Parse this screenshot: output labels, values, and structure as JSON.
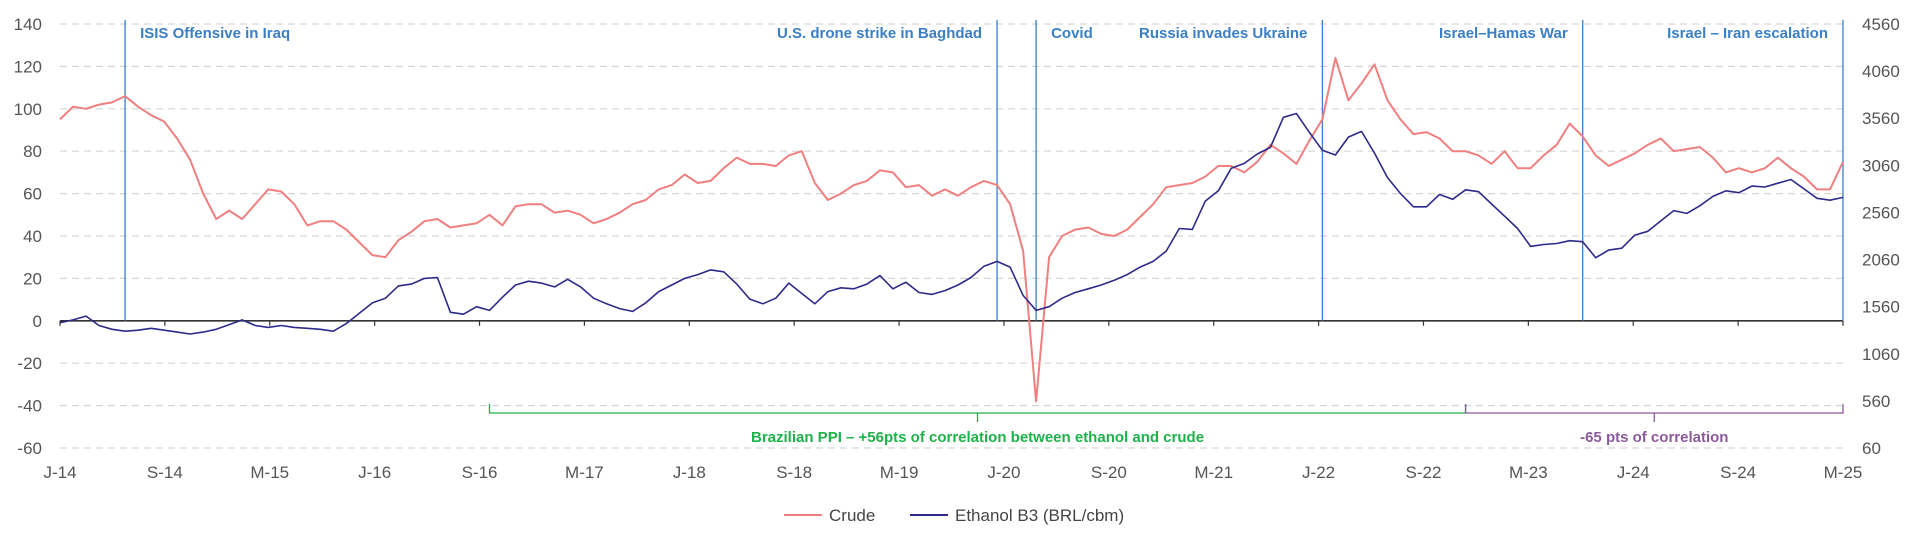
{
  "colors": {
    "crude": "#f07f7f",
    "ethanol": "#2d2a8a",
    "event": "#3b7fc4",
    "green": "#1db34a",
    "purple": "#8b5a9c",
    "grid": "#d6d6d6",
    "axis": "#333333"
  },
  "chart_data": {
    "type": "line",
    "x_ticks": [
      "J-14",
      "S-14",
      "M-15",
      "J-16",
      "S-16",
      "M-17",
      "J-18",
      "S-18",
      "M-19",
      "J-20",
      "S-20",
      "M-21",
      "J-22",
      "S-22",
      "M-23",
      "J-24",
      "S-24",
      "M-25"
    ],
    "left_axis": {
      "ylim": [
        -60,
        140
      ],
      "ticks": [
        140,
        120,
        100,
        80,
        60,
        40,
        20,
        0,
        -20,
        -40,
        -60
      ]
    },
    "right_axis": {
      "ylim": [
        60,
        4560
      ],
      "ticks": [
        "4560",
        "4060",
        "3560",
        "3060",
        "2560",
        "2060",
        "1560",
        "1060",
        "560",
        "60"
      ]
    },
    "grid": true,
    "legend_position": "bottom-center",
    "events": [
      {
        "label": "ISIS Offensive in Iraq",
        "date": "2014-06",
        "side": "right"
      },
      {
        "label": "U.S. drone strike in Baghdad",
        "date": "2020-01",
        "side": "left"
      },
      {
        "label": "Covid",
        "date": "2020-04",
        "side": "right"
      },
      {
        "label": "Russia invades Ukraine",
        "date": "2022-02",
        "side": "left"
      },
      {
        "label": "Israel–Hamas War",
        "date": "2023-10",
        "side": "left"
      },
      {
        "label": "Israel – Iran escalation",
        "date": "2025-06",
        "side": "left"
      }
    ],
    "brackets": [
      {
        "label": "Brazilian PPI – +56pts of correlation between ethanol and crude",
        "start": "2016-10",
        "end": "2023-01",
        "color": "green"
      },
      {
        "label": "-65 pts of correlation",
        "start": "2023-01",
        "end": "2025-06",
        "color": "purple"
      }
    ],
    "series": [
      {
        "name": "Crude",
        "axis": "left",
        "points": [
          [
            "2014-01",
            95
          ],
          [
            "2014-02",
            101
          ],
          [
            "2014-03",
            100
          ],
          [
            "2014-04",
            102
          ],
          [
            "2014-05",
            103
          ],
          [
            "2014-06",
            106
          ],
          [
            "2014-07",
            101
          ],
          [
            "2014-08",
            97
          ],
          [
            "2014-09",
            94
          ],
          [
            "2014-10",
            86
          ],
          [
            "2014-11",
            76
          ],
          [
            "2014-12",
            60
          ],
          [
            "2015-01",
            48
          ],
          [
            "2015-02",
            52
          ],
          [
            "2015-03",
            48
          ],
          [
            "2015-04",
            55
          ],
          [
            "2015-05",
            62
          ],
          [
            "2015-06",
            61
          ],
          [
            "2015-07",
            55
          ],
          [
            "2015-08",
            45
          ],
          [
            "2015-09",
            47
          ],
          [
            "2015-10",
            47
          ],
          [
            "2015-11",
            43
          ],
          [
            "2015-12",
            37
          ],
          [
            "2016-01",
            31
          ],
          [
            "2016-02",
            30
          ],
          [
            "2016-03",
            38
          ],
          [
            "2016-04",
            42
          ],
          [
            "2016-05",
            47
          ],
          [
            "2016-06",
            48
          ],
          [
            "2016-07",
            44
          ],
          [
            "2016-08",
            45
          ],
          [
            "2016-09",
            46
          ],
          [
            "2016-10",
            50
          ],
          [
            "2016-11",
            45
          ],
          [
            "2016-12",
            54
          ],
          [
            "2017-01",
            55
          ],
          [
            "2017-02",
            55
          ],
          [
            "2017-03",
            51
          ],
          [
            "2017-04",
            52
          ],
          [
            "2017-05",
            50
          ],
          [
            "2017-06",
            46
          ],
          [
            "2017-07",
            48
          ],
          [
            "2017-08",
            51
          ],
          [
            "2017-09",
            55
          ],
          [
            "2017-10",
            57
          ],
          [
            "2017-11",
            62
          ],
          [
            "2017-12",
            64
          ],
          [
            "2018-01",
            69
          ],
          [
            "2018-02",
            65
          ],
          [
            "2018-03",
            66
          ],
          [
            "2018-04",
            72
          ],
          [
            "2018-05",
            77
          ],
          [
            "2018-06",
            74
          ],
          [
            "2018-07",
            74
          ],
          [
            "2018-08",
            73
          ],
          [
            "2018-09",
            78
          ],
          [
            "2018-10",
            80
          ],
          [
            "2018-11",
            65
          ],
          [
            "2018-12",
            57
          ],
          [
            "2019-01",
            60
          ],
          [
            "2019-02",
            64
          ],
          [
            "2019-03",
            66
          ],
          [
            "2019-04",
            71
          ],
          [
            "2019-05",
            70
          ],
          [
            "2019-06",
            63
          ],
          [
            "2019-07",
            64
          ],
          [
            "2019-08",
            59
          ],
          [
            "2019-09",
            62
          ],
          [
            "2019-10",
            59
          ],
          [
            "2019-11",
            63
          ],
          [
            "2019-12",
            66
          ],
          [
            "2020-01",
            64
          ],
          [
            "2020-02",
            55
          ],
          [
            "2020-03",
            33
          ],
          [
            "2020-04",
            -38
          ],
          [
            "2020-05",
            30
          ],
          [
            "2020-06",
            40
          ],
          [
            "2020-07",
            43
          ],
          [
            "2020-08",
            44
          ],
          [
            "2020-09",
            41
          ],
          [
            "2020-10",
            40
          ],
          [
            "2020-11",
            43
          ],
          [
            "2020-12",
            49
          ],
          [
            "2021-01",
            55
          ],
          [
            "2021-02",
            63
          ],
          [
            "2021-03",
            64
          ],
          [
            "2021-04",
            65
          ],
          [
            "2021-05",
            68
          ],
          [
            "2021-06",
            73
          ],
          [
            "2021-07",
            73
          ],
          [
            "2021-08",
            70
          ],
          [
            "2021-09",
            75
          ],
          [
            "2021-10",
            83
          ],
          [
            "2021-11",
            79
          ],
          [
            "2021-12",
            74
          ],
          [
            "2022-01",
            85
          ],
          [
            "2022-02",
            95
          ],
          [
            "2022-03",
            124
          ],
          [
            "2022-04",
            104
          ],
          [
            "2022-05",
            112
          ],
          [
            "2022-06",
            121
          ],
          [
            "2022-07",
            104
          ],
          [
            "2022-08",
            95
          ],
          [
            "2022-09",
            88
          ],
          [
            "2022-10",
            89
          ],
          [
            "2022-11",
            86
          ],
          [
            "2022-12",
            80
          ],
          [
            "2023-01",
            80
          ],
          [
            "2023-02",
            78
          ],
          [
            "2023-03",
            74
          ],
          [
            "2023-04",
            80
          ],
          [
            "2023-05",
            72
          ],
          [
            "2023-06",
            72
          ],
          [
            "2023-07",
            78
          ],
          [
            "2023-08",
            83
          ],
          [
            "2023-09",
            93
          ],
          [
            "2023-10",
            87
          ],
          [
            "2023-11",
            78
          ],
          [
            "2023-12",
            73
          ],
          [
            "2024-01",
            76
          ],
          [
            "2024-02",
            79
          ],
          [
            "2024-03",
            83
          ],
          [
            "2024-04",
            86
          ],
          [
            "2024-05",
            80
          ],
          [
            "2024-06",
            81
          ],
          [
            "2024-07",
            82
          ],
          [
            "2024-08",
            77
          ],
          [
            "2024-09",
            70
          ],
          [
            "2024-10",
            72
          ],
          [
            "2024-11",
            70
          ],
          [
            "2024-12",
            72
          ],
          [
            "2025-01",
            77
          ],
          [
            "2025-02",
            72
          ],
          [
            "2025-03",
            68
          ],
          [
            "2025-04",
            62
          ],
          [
            "2025-05",
            62
          ],
          [
            "2025-06",
            75
          ]
        ]
      },
      {
        "name": "Ethanol B3 (BRL/cbm)",
        "axis": "right",
        "points": [
          [
            "2014-01",
            1390
          ],
          [
            "2014-02",
            1420
          ],
          [
            "2014-03",
            1460
          ],
          [
            "2014-04",
            1360
          ],
          [
            "2014-05",
            1320
          ],
          [
            "2014-06",
            1300
          ],
          [
            "2014-07",
            1310
          ],
          [
            "2014-08",
            1330
          ],
          [
            "2014-09",
            1310
          ],
          [
            "2014-10",
            1290
          ],
          [
            "2014-11",
            1270
          ],
          [
            "2014-12",
            1290
          ],
          [
            "2015-01",
            1320
          ],
          [
            "2015-02",
            1370
          ],
          [
            "2015-03",
            1420
          ],
          [
            "2015-04",
            1360
          ],
          [
            "2015-05",
            1340
          ],
          [
            "2015-06",
            1360
          ],
          [
            "2015-07",
            1340
          ],
          [
            "2015-08",
            1330
          ],
          [
            "2015-09",
            1320
          ],
          [
            "2015-10",
            1300
          ],
          [
            "2015-11",
            1380
          ],
          [
            "2015-12",
            1490
          ],
          [
            "2016-01",
            1600
          ],
          [
            "2016-02",
            1650
          ],
          [
            "2016-03",
            1780
          ],
          [
            "2016-04",
            1800
          ],
          [
            "2016-05",
            1860
          ],
          [
            "2016-06",
            1870
          ],
          [
            "2016-07",
            1500
          ],
          [
            "2016-08",
            1480
          ],
          [
            "2016-09",
            1560
          ],
          [
            "2016-10",
            1520
          ],
          [
            "2016-11",
            1660
          ],
          [
            "2016-12",
            1790
          ],
          [
            "2017-01",
            1830
          ],
          [
            "2017-02",
            1810
          ],
          [
            "2017-03",
            1770
          ],
          [
            "2017-04",
            1850
          ],
          [
            "2017-05",
            1770
          ],
          [
            "2017-06",
            1650
          ],
          [
            "2017-07",
            1590
          ],
          [
            "2017-08",
            1540
          ],
          [
            "2017-09",
            1510
          ],
          [
            "2017-10",
            1600
          ],
          [
            "2017-11",
            1720
          ],
          [
            "2017-12",
            1790
          ],
          [
            "2018-01",
            1860
          ],
          [
            "2018-02",
            1900
          ],
          [
            "2018-03",
            1950
          ],
          [
            "2018-04",
            1930
          ],
          [
            "2018-05",
            1800
          ],
          [
            "2018-06",
            1640
          ],
          [
            "2018-07",
            1590
          ],
          [
            "2018-08",
            1650
          ],
          [
            "2018-09",
            1810
          ],
          [
            "2018-10",
            1700
          ],
          [
            "2018-11",
            1590
          ],
          [
            "2018-12",
            1720
          ],
          [
            "2019-01",
            1760
          ],
          [
            "2019-02",
            1750
          ],
          [
            "2019-03",
            1800
          ],
          [
            "2019-04",
            1890
          ],
          [
            "2019-05",
            1750
          ],
          [
            "2019-06",
            1820
          ],
          [
            "2019-07",
            1710
          ],
          [
            "2019-08",
            1690
          ],
          [
            "2019-09",
            1730
          ],
          [
            "2019-10",
            1790
          ],
          [
            "2019-11",
            1870
          ],
          [
            "2019-12",
            1990
          ],
          [
            "2020-01",
            2040
          ],
          [
            "2020-02",
            1980
          ],
          [
            "2020-03",
            1680
          ],
          [
            "2020-04",
            1520
          ],
          [
            "2020-05",
            1560
          ],
          [
            "2020-06",
            1650
          ],
          [
            "2020-07",
            1710
          ],
          [
            "2020-08",
            1750
          ],
          [
            "2020-09",
            1790
          ],
          [
            "2020-10",
            1840
          ],
          [
            "2020-11",
            1900
          ],
          [
            "2020-12",
            1980
          ],
          [
            "2021-01",
            2040
          ],
          [
            "2021-02",
            2150
          ],
          [
            "2021-03",
            2390
          ],
          [
            "2021-04",
            2380
          ],
          [
            "2021-05",
            2680
          ],
          [
            "2021-06",
            2790
          ],
          [
            "2021-07",
            3030
          ],
          [
            "2021-08",
            3080
          ],
          [
            "2021-09",
            3180
          ],
          [
            "2021-10",
            3250
          ],
          [
            "2021-11",
            3570
          ],
          [
            "2021-12",
            3610
          ],
          [
            "2022-01",
            3410
          ],
          [
            "2022-02",
            3220
          ],
          [
            "2022-03",
            3170
          ],
          [
            "2022-04",
            3360
          ],
          [
            "2022-05",
            3420
          ],
          [
            "2022-06",
            3190
          ],
          [
            "2022-07",
            2930
          ],
          [
            "2022-08",
            2760
          ],
          [
            "2022-09",
            2620
          ],
          [
            "2022-10",
            2620
          ],
          [
            "2022-11",
            2750
          ],
          [
            "2022-12",
            2700
          ],
          [
            "2023-01",
            2800
          ],
          [
            "2023-02",
            2780
          ],
          [
            "2023-03",
            2650
          ],
          [
            "2023-04",
            2520
          ],
          [
            "2023-05",
            2390
          ],
          [
            "2023-06",
            2200
          ],
          [
            "2023-07",
            2220
          ],
          [
            "2023-08",
            2230
          ],
          [
            "2023-09",
            2260
          ],
          [
            "2023-10",
            2250
          ],
          [
            "2023-11",
            2080
          ],
          [
            "2023-12",
            2160
          ],
          [
            "2024-01",
            2180
          ],
          [
            "2024-02",
            2320
          ],
          [
            "2024-03",
            2360
          ],
          [
            "2024-04",
            2470
          ],
          [
            "2024-05",
            2580
          ],
          [
            "2024-06",
            2550
          ],
          [
            "2024-07",
            2630
          ],
          [
            "2024-08",
            2730
          ],
          [
            "2024-09",
            2790
          ],
          [
            "2024-10",
            2770
          ],
          [
            "2024-11",
            2840
          ],
          [
            "2024-12",
            2830
          ],
          [
            "2025-01",
            2870
          ],
          [
            "2025-02",
            2910
          ],
          [
            "2025-03",
            2810
          ],
          [
            "2025-04",
            2710
          ],
          [
            "2025-05",
            2690
          ],
          [
            "2025-06",
            2720
          ]
        ]
      }
    ]
  }
}
